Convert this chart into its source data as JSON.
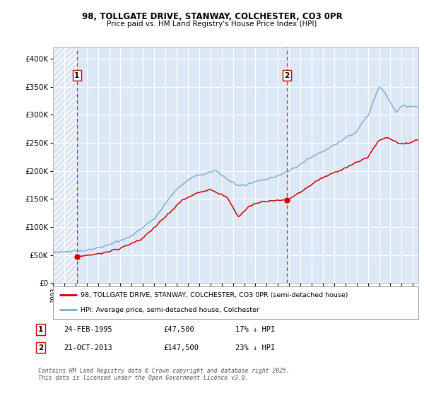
{
  "title_line1": "98, TOLLGATE DRIVE, STANWAY, COLCHESTER, CO3 0PR",
  "title_line2": "Price paid vs. HM Land Registry's House Price Index (HPI)",
  "legend_label_red": "98, TOLLGATE DRIVE, STANWAY, COLCHESTER, CO3 0PR (semi-detached house)",
  "legend_label_blue": "HPI: Average price, semi-detached house, Colchester",
  "annotation1_label": "1",
  "annotation1_date": "24-FEB-1995",
  "annotation1_price": "£47,500",
  "annotation1_hpi": "17% ↓ HPI",
  "annotation2_label": "2",
  "annotation2_date": "21-OCT-2013",
  "annotation2_price": "£147,500",
  "annotation2_hpi": "23% ↓ HPI",
  "copyright_text": "Contains HM Land Registry data © Crown copyright and database right 2025.\nThis data is licensed under the Open Government Licence v3.0.",
  "red_color": "#cc0000",
  "blue_color": "#7aaacf",
  "dashed_color": "#cc0000",
  "background_color": "#dce8f5",
  "plot_bg": "#ffffff",
  "ylim": [
    0,
    420000
  ],
  "yticks": [
    0,
    50000,
    100000,
    150000,
    200000,
    250000,
    300000,
    350000,
    400000
  ],
  "ytick_labels": [
    "£0",
    "£50K",
    "£100K",
    "£150K",
    "£200K",
    "£250K",
    "£300K",
    "£350K",
    "£400K"
  ],
  "sale1_x": 1995.12,
  "sale1_y": 47500,
  "sale2_x": 2013.79,
  "sale2_y": 147500,
  "xmin": 1993.0,
  "xmax": 2025.5
}
